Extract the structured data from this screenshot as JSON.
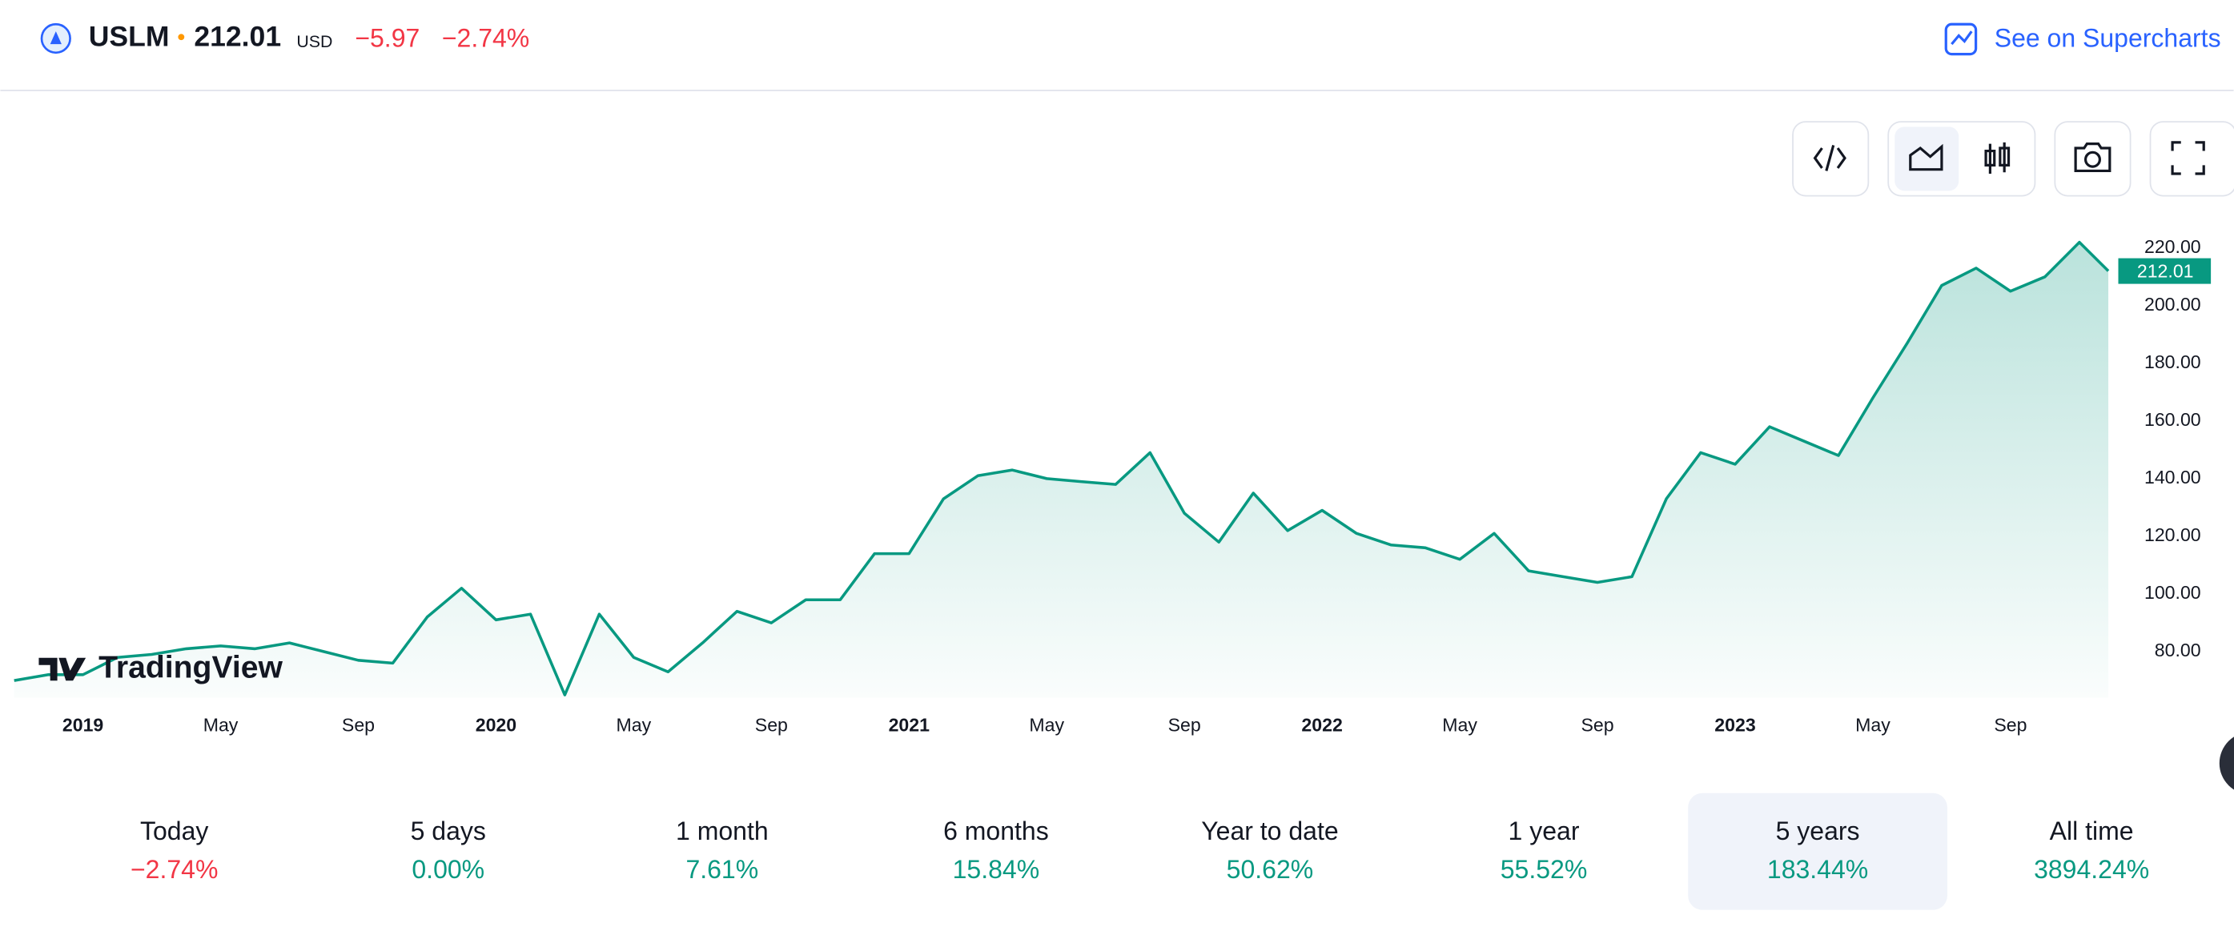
{
  "header": {
    "symbol": "USLM",
    "price": "212.01",
    "currency": "USD",
    "change": "−5.97",
    "change_pct": "−2.74%",
    "link": "See on Supercharts"
  },
  "watermark": "TradingView",
  "chart_data": {
    "type": "line",
    "color": "#089981",
    "x": [
      "2018-11",
      "2018-12",
      "2019-01",
      "2019-02",
      "2019-03",
      "2019-04",
      "2019-05",
      "2019-06",
      "2019-07",
      "2019-08",
      "2019-09",
      "2019-10",
      "2019-11",
      "2019-12",
      "2020-01",
      "2020-02",
      "2020-03",
      "2020-04",
      "2020-05",
      "2020-06",
      "2020-07",
      "2020-08",
      "2020-09",
      "2020-10",
      "2020-11",
      "2020-12",
      "2021-01",
      "2021-02",
      "2021-03",
      "2021-04",
      "2021-05",
      "2021-06",
      "2021-07",
      "2021-08",
      "2021-09",
      "2021-10",
      "2021-11",
      "2021-12",
      "2022-01",
      "2022-02",
      "2022-03",
      "2022-04",
      "2022-05",
      "2022-06",
      "2022-07",
      "2022-08",
      "2022-09",
      "2022-10",
      "2022-11",
      "2022-12",
      "2023-01",
      "2023-02",
      "2023-03",
      "2023-04",
      "2023-05",
      "2023-06",
      "2023-07",
      "2023-08",
      "2023-09",
      "2023-10",
      "2023-11",
      "2023-12"
    ],
    "values": [
      70,
      72,
      72,
      78,
      79,
      81,
      82,
      81,
      83,
      80,
      77,
      76,
      92,
      102,
      91,
      93,
      65,
      93,
      78,
      73,
      83,
      94,
      90,
      98,
      98,
      114,
      114,
      133,
      141,
      143,
      140,
      139,
      138,
      149,
      128,
      118,
      135,
      122,
      129,
      121,
      117,
      116,
      112,
      121,
      108,
      106,
      104,
      106,
      133,
      149,
      145,
      158,
      153,
      148,
      168,
      187,
      207,
      213,
      205,
      210,
      222,
      212.01
    ],
    "ylim": [
      64,
      227
    ],
    "yticks": [
      {
        "value": 80,
        "label": "80.00"
      },
      {
        "value": 100,
        "label": "100.00"
      },
      {
        "value": 120,
        "label": "120.00"
      },
      {
        "value": 140,
        "label": "140.00"
      },
      {
        "value": 160,
        "label": "160.00"
      },
      {
        "value": 180,
        "label": "180.00"
      },
      {
        "value": 200,
        "label": "200.00"
      },
      {
        "value": 220,
        "label": "220.00"
      }
    ],
    "xticks": [
      {
        "value": "2019-01",
        "label": "2019"
      },
      {
        "value": "2019-05",
        "label": "May"
      },
      {
        "value": "2019-09",
        "label": "Sep"
      },
      {
        "value": "2020-01",
        "label": "2020"
      },
      {
        "value": "2020-05",
        "label": "May"
      },
      {
        "value": "2020-09",
        "label": "Sep"
      },
      {
        "value": "2021-01",
        "label": "2021"
      },
      {
        "value": "2021-05",
        "label": "May"
      },
      {
        "value": "2021-09",
        "label": "Sep"
      },
      {
        "value": "2022-01",
        "label": "2022"
      },
      {
        "value": "2022-05",
        "label": "May"
      },
      {
        "value": "2022-09",
        "label": "Sep"
      },
      {
        "value": "2023-01",
        "label": "2023"
      },
      {
        "value": "2023-05",
        "label": "May"
      },
      {
        "value": "2023-09",
        "label": "Sep"
      }
    ]
  },
  "periods": [
    {
      "label": "Today",
      "value": "−2.74%",
      "color": "#f23645"
    },
    {
      "label": "5 days",
      "value": "0.00%",
      "color": "#089981"
    },
    {
      "label": "1 month",
      "value": "7.61%",
      "color": "#089981"
    },
    {
      "label": "6 months",
      "value": "15.84%",
      "color": "#089981"
    },
    {
      "label": "Year to date",
      "value": "50.62%",
      "color": "#089981"
    },
    {
      "label": "1 year",
      "value": "55.52%",
      "color": "#089981"
    },
    {
      "label": "5 years",
      "value": "183.44%",
      "color": "#089981",
      "selected": true
    },
    {
      "label": "All time",
      "value": "3894.24%",
      "color": "#089981"
    }
  ]
}
